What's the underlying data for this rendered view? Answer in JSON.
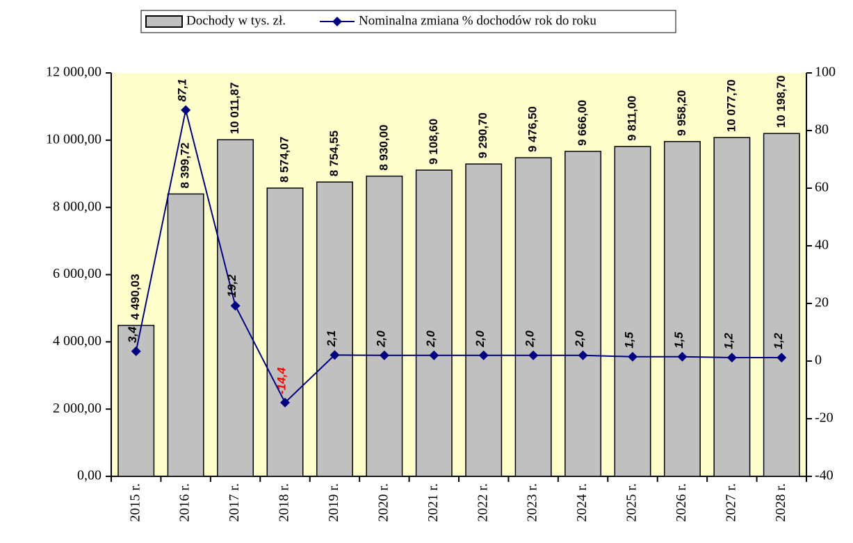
{
  "chart_data": {
    "type": "bar_line",
    "categories": [
      "2015 r.",
      "2016 r.",
      "2017 r.",
      "2018 r.",
      "2019 r.",
      "2020 r.",
      "2021 r.",
      "2022 r.",
      "2023 r.",
      "2024 r.",
      "2025 r.",
      "2026 r.",
      "2027 r.",
      "2028 r."
    ],
    "series": [
      {
        "name": "Dochody w tys. zł.",
        "color": "#c0c0c0",
        "values": [
          4490.03,
          8399.72,
          10011.87,
          8574.07,
          8754.55,
          8930.0,
          9108.6,
          9290.7,
          9476.5,
          9666.0,
          9811.0,
          9958.2,
          10077.7,
          10198.7
        ],
        "value_labels": [
          "4 490,03",
          "8 399,72",
          "10 011,87",
          "8 574,07",
          "8 754,55",
          "8 930,00",
          "9 108,60",
          "9 290,70",
          "9 476,50",
          "9 666,00",
          "9 811,00",
          "9 958,20",
          "10 077,70",
          "10 198,70"
        ]
      },
      {
        "name": "Nominalna zmiana % dochodów rok do roku",
        "color": "#000080",
        "axis": "y2",
        "values": [
          3.4,
          87.1,
          19.2,
          -14.4,
          2.1,
          2.0,
          2.0,
          2.0,
          2.0,
          2.0,
          1.5,
          1.5,
          1.2,
          1.2
        ],
        "value_labels": [
          "3,4",
          "87,1",
          "19,2",
          "-14,4",
          "2,1",
          "2,0",
          "2,0",
          "2,0",
          "2,0",
          "2,0",
          "1,5",
          "1,5",
          "1,2",
          "1,2"
        ]
      }
    ],
    "ylim": [
      0,
      12000
    ],
    "yticks": [
      {
        "value": 0,
        "label": "0,00"
      },
      {
        "value": 2000,
        "label": "2 000,00"
      },
      {
        "value": 4000,
        "label": "4 000,00"
      },
      {
        "value": 6000,
        "label": "6 000,00"
      },
      {
        "value": 8000,
        "label": "8 000,00"
      },
      {
        "value": 10000,
        "label": "10 000,00"
      },
      {
        "value": 12000,
        "label": "12 000,00"
      }
    ],
    "y2lim": [
      -40,
      100
    ],
    "y2ticks": [
      -40,
      -20,
      0,
      20,
      40,
      60,
      80,
      100
    ],
    "background": "#ffffcc"
  }
}
